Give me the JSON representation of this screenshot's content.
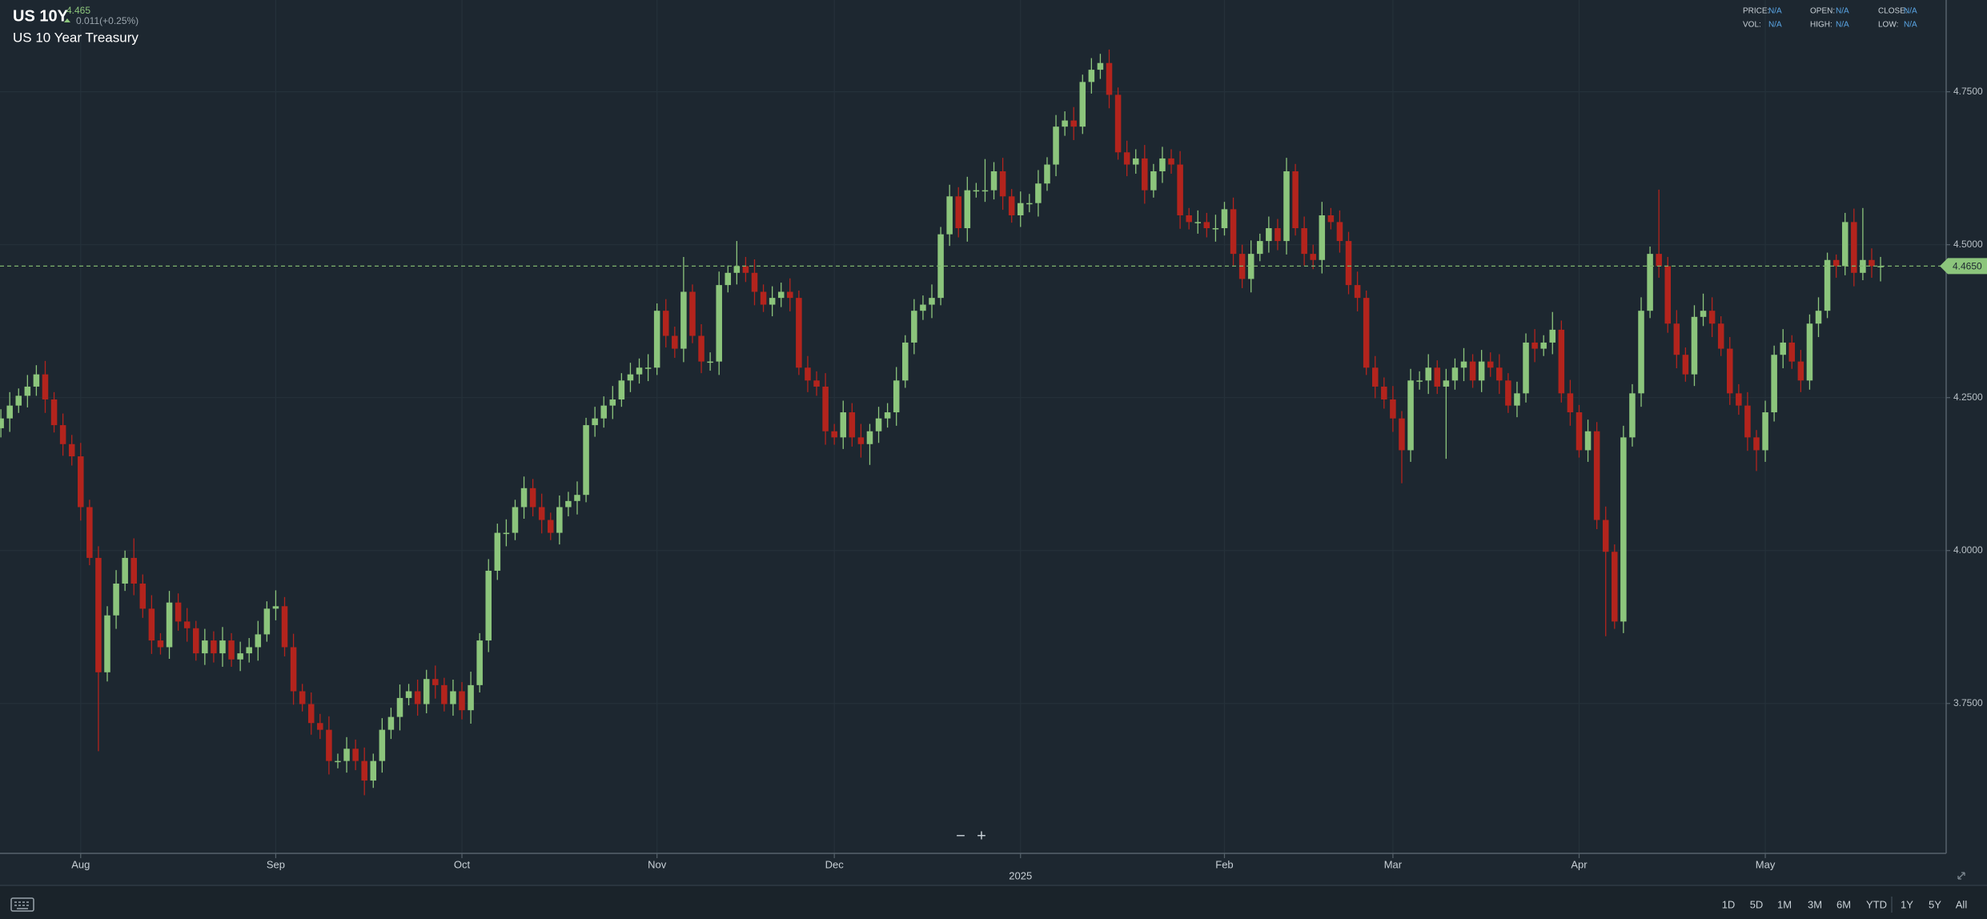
{
  "header": {
    "symbol": "US 10Y",
    "price": "4.465",
    "change": "0.011(+0.25%)",
    "name": "US 10 Year Treasury"
  },
  "info": [
    {
      "label": "PRICE:",
      "value": "N/A"
    },
    {
      "label": "VOL:",
      "value": "N/A"
    },
    {
      "label": "OPEN:",
      "value": "N/A"
    },
    {
      "label": "HIGH:",
      "value": "N/A"
    },
    {
      "label": "CLOSE:",
      "value": "N/A"
    },
    {
      "label": "LOW:",
      "value": "N/A"
    }
  ],
  "zoom": [
    "−",
    "+"
  ],
  "ranges": [
    "1D",
    "5D",
    "1M",
    "3M",
    "6M",
    "YTD",
    "1Y",
    "5Y",
    "All"
  ],
  "chart_data": {
    "type": "candlestick",
    "up_color": "#8cc57c",
    "down_color": "#b3241d",
    "grid": true,
    "ylim": [
      3.505,
      4.9
    ],
    "yticks": [
      {
        "value": 3.75,
        "label": "3.7500"
      },
      {
        "value": 4.0,
        "label": "4.0000"
      },
      {
        "value": 4.25,
        "label": "4.2500"
      },
      {
        "value": 4.5,
        "label": "4.5000"
      },
      {
        "value": 4.75,
        "label": "4.7500"
      }
    ],
    "xlim": [
      -0.1,
      219.4
    ],
    "xticks": [
      {
        "value": 9,
        "label": "Aug"
      },
      {
        "value": 31,
        "label": "Sep"
      },
      {
        "value": 52,
        "label": "Oct"
      },
      {
        "value": 74,
        "label": "Nov"
      },
      {
        "value": 94,
        "label": "Dec"
      },
      {
        "value": 115,
        "label": "2025"
      },
      {
        "value": 138,
        "label": "Feb"
      },
      {
        "value": 157,
        "label": "Mar"
      },
      {
        "value": 178,
        "label": "Apr"
      },
      {
        "value": 199,
        "label": "May"
      }
    ],
    "last_price": {
      "value": 4.465,
      "label": "4.4650"
    },
    "open": [
      4.2,
      4.216,
      4.237,
      4.253,
      4.268,
      4.288,
      4.247,
      4.205,
      4.174,
      4.154,
      4.071,
      3.988,
      3.801,
      3.894,
      3.946,
      3.988,
      3.946,
      3.905,
      3.853,
      3.842,
      3.915,
      3.884,
      3.873,
      3.832,
      3.853,
      3.832,
      3.853,
      3.822,
      3.832,
      3.842,
      3.863,
      3.905,
      3.909,
      3.842,
      3.77,
      3.749,
      3.718,
      3.707,
      3.656,
      3.656,
      3.676,
      3.656,
      3.624,
      3.656,
      3.707,
      3.728,
      3.759,
      3.77,
      3.749,
      3.79,
      3.78,
      3.749,
      3.77,
      3.739,
      3.78,
      3.853,
      3.967,
      4.029,
      4.029,
      4.071,
      4.102,
      4.071,
      4.05,
      4.029,
      4.071,
      4.081,
      4.091,
      4.205,
      4.216,
      4.237,
      4.247,
      4.278,
      4.288,
      4.299,
      4.299,
      4.392,
      4.351,
      4.33,
      4.423,
      4.351,
      4.309,
      4.309,
      4.434,
      4.454,
      4.465,
      4.454,
      4.423,
      4.402,
      4.413,
      4.423,
      4.413,
      4.299,
      4.278,
      4.268,
      4.195,
      4.185,
      4.226,
      4.185,
      4.174,
      4.195,
      4.216,
      4.226,
      4.278,
      4.34,
      4.392,
      4.402,
      4.413,
      4.517,
      4.579,
      4.527,
      4.589,
      4.589,
      4.589,
      4.62,
      4.579,
      4.548,
      4.568,
      4.568,
      4.6,
      4.631,
      4.693,
      4.703,
      4.693,
      4.766,
      4.786,
      4.797,
      4.745,
      4.651,
      4.631,
      4.641,
      4.589,
      4.62,
      4.641,
      4.631,
      4.548,
      4.537,
      4.537,
      4.527,
      4.527,
      4.558,
      4.485,
      4.444,
      4.485,
      4.506,
      4.527,
      4.506,
      4.62,
      4.527,
      4.485,
      4.475,
      4.548,
      4.537,
      4.506,
      4.434,
      4.413,
      4.299,
      4.268,
      4.247,
      4.216,
      4.164,
      4.278,
      4.278,
      4.299,
      4.268,
      4.278,
      4.299,
      4.309,
      4.278,
      4.309,
      4.299,
      4.278,
      4.237,
      4.257,
      4.34,
      4.33,
      4.34,
      4.361,
      4.257,
      4.226,
      4.164,
      4.195,
      4.05,
      3.998,
      3.884,
      4.185,
      4.257,
      4.392,
      4.485,
      4.465,
      4.371,
      4.32,
      4.288,
      4.382,
      4.392,
      4.371,
      4.33,
      4.257,
      4.237,
      4.185,
      4.164,
      4.226,
      4.32,
      4.34,
      4.309,
      4.278,
      4.371,
      4.392,
      4.475,
      4.465,
      4.537,
      4.454,
      4.475,
      4.465
    ],
    "high": [
      4.231,
      4.259,
      4.265,
      4.287,
      4.303,
      4.31,
      4.259,
      4.224,
      4.189,
      4.176,
      4.083,
      4.007,
      3.909,
      3.968,
      4.0,
      4.02,
      3.961,
      3.927,
      3.865,
      3.934,
      3.93,
      3.906,
      3.885,
      3.872,
      3.868,
      3.875,
      3.865,
      3.851,
      3.857,
      3.885,
      3.917,
      3.935,
      3.924,
      3.864,
      3.782,
      3.768,
      3.733,
      3.729,
      3.668,
      3.695,
      3.691,
      3.678,
      3.668,
      3.726,
      3.743,
      3.781,
      3.782,
      3.789,
      3.805,
      3.812,
      3.792,
      3.789,
      3.785,
      3.802,
      3.865,
      3.986,
      4.044,
      4.051,
      4.083,
      4.121,
      4.117,
      4.093,
      4.062,
      4.09,
      4.096,
      4.113,
      4.217,
      4.235,
      4.252,
      4.269,
      4.29,
      4.307,
      4.314,
      4.321,
      4.404,
      4.411,
      4.366,
      4.48,
      4.435,
      4.37,
      4.324,
      4.456,
      4.466,
      4.506,
      4.48,
      4.476,
      4.435,
      4.432,
      4.438,
      4.445,
      4.425,
      4.318,
      4.293,
      4.29,
      4.207,
      4.245,
      4.241,
      4.207,
      4.207,
      4.235,
      4.241,
      4.3,
      4.352,
      4.411,
      4.417,
      4.435,
      4.529,
      4.598,
      4.594,
      4.611,
      4.601,
      4.64,
      4.635,
      4.642,
      4.591,
      4.587,
      4.583,
      4.622,
      4.643,
      4.712,
      4.718,
      4.725,
      4.778,
      4.805,
      4.812,
      4.819,
      4.757,
      4.67,
      4.656,
      4.663,
      4.632,
      4.66,
      4.656,
      4.653,
      4.56,
      4.556,
      4.552,
      4.549,
      4.57,
      4.577,
      4.5,
      4.507,
      4.518,
      4.546,
      4.542,
      4.642,
      4.632,
      4.546,
      4.5,
      4.57,
      4.56,
      4.556,
      4.521,
      4.456,
      4.425,
      4.318,
      4.283,
      4.269,
      4.228,
      4.297,
      4.293,
      4.321,
      4.311,
      4.297,
      4.314,
      4.331,
      4.321,
      4.328,
      4.324,
      4.321,
      4.29,
      4.276,
      4.355,
      4.362,
      4.352,
      4.39,
      4.376,
      4.279,
      4.238,
      4.214,
      4.21,
      4.072,
      4.01,
      4.204,
      4.272,
      4.414,
      4.497,
      4.59,
      4.48,
      4.393,
      4.332,
      4.401,
      4.42,
      4.414,
      4.383,
      4.349,
      4.272,
      4.259,
      4.197,
      4.245,
      4.335,
      4.362,
      4.352,
      4.328,
      4.386,
      4.414,
      4.487,
      4.484,
      4.552,
      4.559,
      4.56,
      4.494,
      4.48
    ],
    "low": [
      4.185,
      4.194,
      4.225,
      4.234,
      4.253,
      4.225,
      4.193,
      4.155,
      4.139,
      4.049,
      3.976,
      3.672,
      3.786,
      3.872,
      3.934,
      3.927,
      3.89,
      3.831,
      3.83,
      3.823,
      3.869,
      3.851,
      3.82,
      3.813,
      3.817,
      3.81,
      3.81,
      3.803,
      3.817,
      3.82,
      3.851,
      3.886,
      3.827,
      3.748,
      3.737,
      3.699,
      3.692,
      3.634,
      3.644,
      3.637,
      3.641,
      3.6,
      3.612,
      3.637,
      3.692,
      3.706,
      3.747,
      3.73,
      3.734,
      3.758,
      3.737,
      3.73,
      3.724,
      3.717,
      3.768,
      3.834,
      3.952,
      4.007,
      4.017,
      4.052,
      4.056,
      4.028,
      4.017,
      4.01,
      4.056,
      4.059,
      4.079,
      4.186,
      4.201,
      4.215,
      4.235,
      4.259,
      4.273,
      4.277,
      4.287,
      4.332,
      4.315,
      4.308,
      4.339,
      4.29,
      4.294,
      4.287,
      4.422,
      4.435,
      4.439,
      4.401,
      4.39,
      4.383,
      4.398,
      4.391,
      4.287,
      4.259,
      4.253,
      4.173,
      4.173,
      4.166,
      4.17,
      4.152,
      4.14,
      4.176,
      4.201,
      4.204,
      4.266,
      4.321,
      4.377,
      4.38,
      4.401,
      4.498,
      4.512,
      4.505,
      4.577,
      4.57,
      4.574,
      4.557,
      4.536,
      4.529,
      4.553,
      4.546,
      4.588,
      4.612,
      4.678,
      4.671,
      4.681,
      4.747,
      4.771,
      4.723,
      4.639,
      4.612,
      4.616,
      4.567,
      4.577,
      4.601,
      4.616,
      4.526,
      4.525,
      4.518,
      4.512,
      4.505,
      4.515,
      4.466,
      4.429,
      4.422,
      4.473,
      4.487,
      4.491,
      4.484,
      4.515,
      4.466,
      4.46,
      4.453,
      4.525,
      4.487,
      4.419,
      4.391,
      4.287,
      4.249,
      4.232,
      4.194,
      4.11,
      4.145,
      4.263,
      4.256,
      4.256,
      4.15,
      4.263,
      4.277,
      4.266,
      4.259,
      4.284,
      4.256,
      4.225,
      4.218,
      4.242,
      4.308,
      4.318,
      4.321,
      4.242,
      4.204,
      4.152,
      4.145,
      4.035,
      3.86,
      3.872,
      3.865,
      4.17,
      4.235,
      4.38,
      4.446,
      4.356,
      4.298,
      4.276,
      4.269,
      4.367,
      4.349,
      4.318,
      4.238,
      4.222,
      4.163,
      4.13,
      4.145,
      4.211,
      4.298,
      4.297,
      4.259,
      4.263,
      4.349,
      4.38,
      4.446,
      4.45,
      4.432,
      4.442,
      4.446,
      4.44
    ],
    "close": [
      4.216,
      4.237,
      4.253,
      4.268,
      4.288,
      4.247,
      4.205,
      4.174,
      4.154,
      4.071,
      3.988,
      3.801,
      3.894,
      3.946,
      3.988,
      3.946,
      3.905,
      3.853,
      3.842,
      3.915,
      3.884,
      3.873,
      3.832,
      3.853,
      3.832,
      3.853,
      3.822,
      3.832,
      3.842,
      3.863,
      3.905,
      3.909,
      3.842,
      3.77,
      3.749,
      3.718,
      3.707,
      3.656,
      3.656,
      3.676,
      3.656,
      3.624,
      3.656,
      3.707,
      3.728,
      3.759,
      3.77,
      3.749,
      3.79,
      3.78,
      3.749,
      3.77,
      3.739,
      3.78,
      3.853,
      3.967,
      4.029,
      4.029,
      4.071,
      4.102,
      4.071,
      4.05,
      4.029,
      4.071,
      4.081,
      4.091,
      4.205,
      4.216,
      4.237,
      4.247,
      4.278,
      4.288,
      4.299,
      4.299,
      4.392,
      4.351,
      4.33,
      4.423,
      4.351,
      4.309,
      4.309,
      4.434,
      4.454,
      4.465,
      4.454,
      4.423,
      4.402,
      4.413,
      4.423,
      4.413,
      4.299,
      4.278,
      4.268,
      4.195,
      4.185,
      4.226,
      4.185,
      4.174,
      4.195,
      4.216,
      4.226,
      4.278,
      4.34,
      4.392,
      4.402,
      4.413,
      4.517,
      4.579,
      4.527,
      4.589,
      4.589,
      4.589,
      4.62,
      4.579,
      4.548,
      4.568,
      4.568,
      4.6,
      4.631,
      4.693,
      4.703,
      4.693,
      4.766,
      4.786,
      4.797,
      4.745,
      4.651,
      4.631,
      4.641,
      4.589,
      4.62,
      4.641,
      4.631,
      4.548,
      4.537,
      4.537,
      4.527,
      4.527,
      4.558,
      4.485,
      4.444,
      4.485,
      4.506,
      4.527,
      4.506,
      4.62,
      4.527,
      4.485,
      4.475,
      4.548,
      4.537,
      4.506,
      4.434,
      4.413,
      4.299,
      4.268,
      4.247,
      4.216,
      4.164,
      4.278,
      4.278,
      4.299,
      4.268,
      4.278,
      4.299,
      4.309,
      4.278,
      4.309,
      4.299,
      4.278,
      4.237,
      4.257,
      4.34,
      4.33,
      4.34,
      4.361,
      4.257,
      4.226,
      4.164,
      4.195,
      4.05,
      3.998,
      3.884,
      4.185,
      4.257,
      4.392,
      4.485,
      4.465,
      4.371,
      4.32,
      4.288,
      4.382,
      4.392,
      4.371,
      4.33,
      4.257,
      4.237,
      4.185,
      4.164,
      4.226,
      4.32,
      4.34,
      4.309,
      4.278,
      4.371,
      4.392,
      4.475,
      4.465,
      4.537,
      4.454,
      4.475,
      4.465,
      4.465
    ]
  }
}
